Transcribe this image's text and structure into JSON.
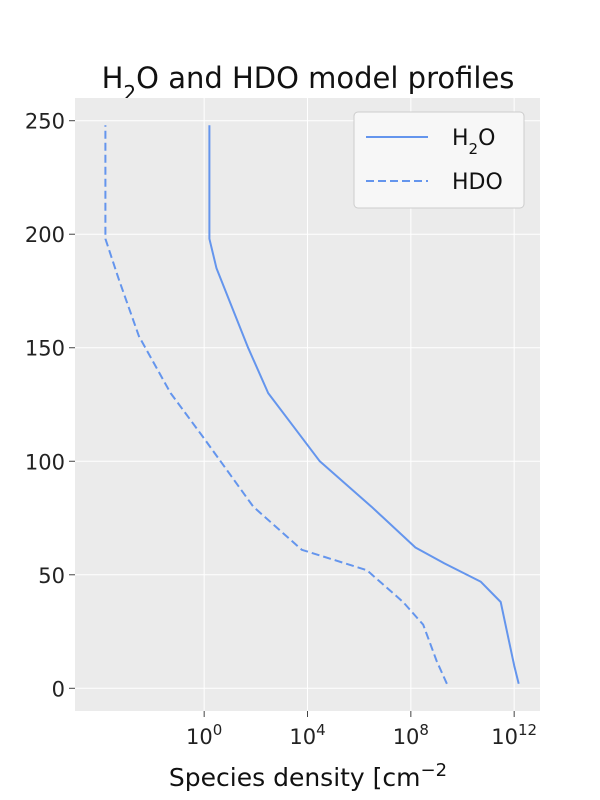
{
  "chart_data": {
    "type": "line",
    "title_parts": {
      "base": "H",
      "sub": "2",
      "rest": "O and HDO model profiles"
    },
    "xlabel_parts": {
      "base": "Species density [cm",
      "sup": "−2"
    },
    "ylabel": "",
    "x_scale": "log",
    "xlim": [
      1e-05,
      10000000000000.0
    ],
    "ylim": [
      -10,
      260
    ],
    "grid": true,
    "legend_position": "top-right",
    "x_ticks": [
      {
        "base": "10",
        "exp": "0",
        "value": 1
      },
      {
        "base": "10",
        "exp": "4",
        "value": 10000
      },
      {
        "base": "10",
        "exp": "8",
        "value": 100000000
      },
      {
        "base": "10",
        "exp": "12",
        "value": 1000000000000
      }
    ],
    "y_ticks": [
      {
        "label": "0",
        "value": 0
      },
      {
        "label": "50",
        "value": 50
      },
      {
        "label": "100",
        "value": 100
      },
      {
        "label": "150",
        "value": 150
      },
      {
        "label": "200",
        "value": 200
      },
      {
        "label": "250",
        "value": 250
      }
    ],
    "series": [
      {
        "name_parts": {
          "base": "H",
          "sub": "2",
          "rest": "O"
        },
        "color": "#6495ed",
        "dash": "solid",
        "points": [
          [
            1500000000000.0,
            2
          ],
          [
            1000000000000.0,
            10
          ],
          [
            600000000000.0,
            22
          ],
          [
            300000000000.0,
            38
          ],
          [
            50000000000.0,
            47
          ],
          [
            2000000000.0,
            55
          ],
          [
            150000000.0,
            62
          ],
          [
            3000000.0,
            80
          ],
          [
            30000.0,
            100
          ],
          [
            3000.0,
            115
          ],
          [
            300.0,
            130
          ],
          [
            50.0,
            150
          ],
          [
            10.0,
            170
          ],
          [
            3.0,
            185
          ],
          [
            1.6,
            198
          ],
          [
            1.6,
            248
          ]
        ]
      },
      {
        "name_parts": {
          "base": "HDO",
          "sub": "",
          "rest": ""
        },
        "color": "#6495ed",
        "dash": "dashed",
        "points": [
          [
            2500000000.0,
            2
          ],
          [
            1000000000.0,
            12
          ],
          [
            300000000.0,
            28
          ],
          [
            50000000.0,
            38
          ],
          [
            2000000.0,
            52
          ],
          [
            6000.0,
            61
          ],
          [
            80.0,
            80
          ],
          [
            1.0,
            110
          ],
          [
            0.05,
            130
          ],
          [
            0.003,
            155
          ],
          [
            0.0005,
            180
          ],
          [
            0.00015,
            198
          ],
          [
            0.00015,
            248
          ]
        ]
      }
    ]
  }
}
